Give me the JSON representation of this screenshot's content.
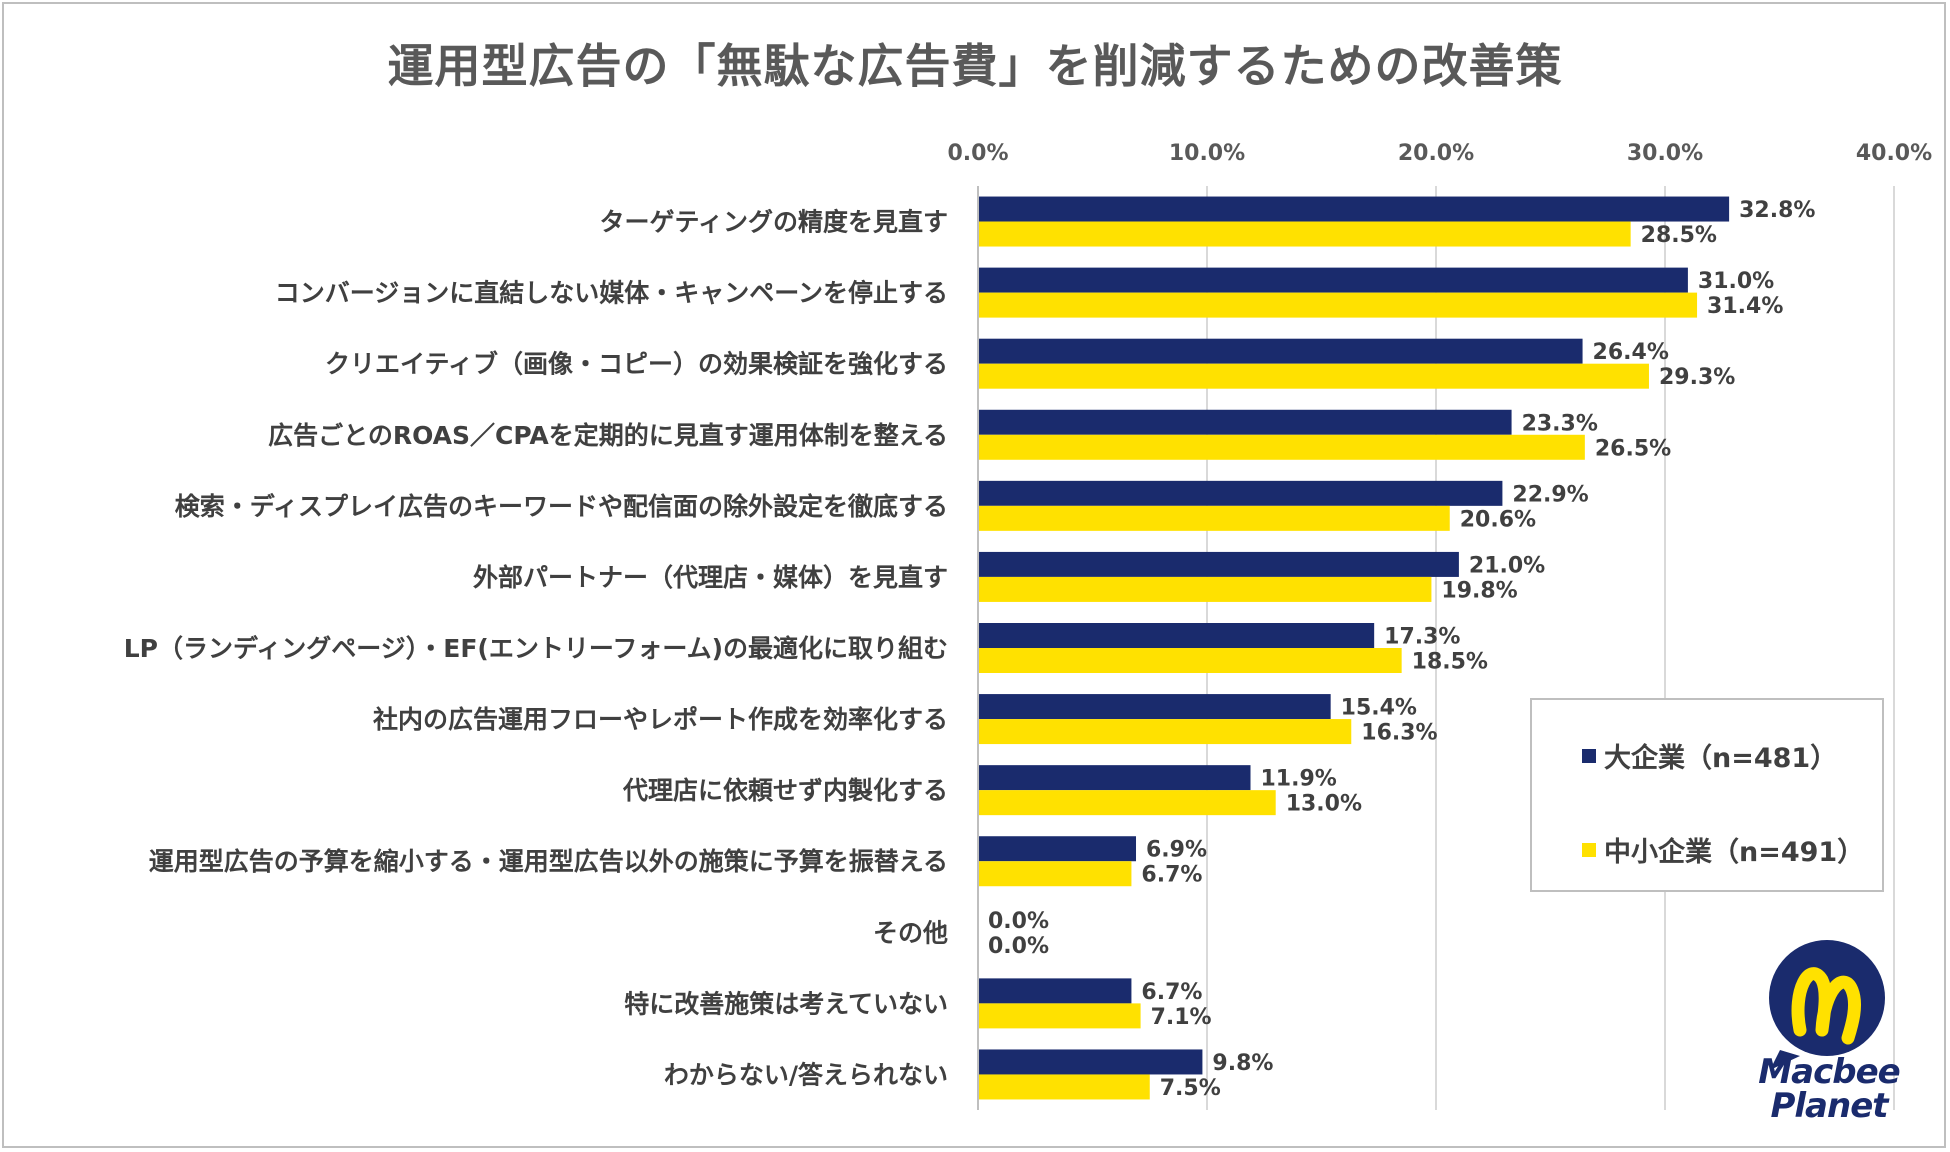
{
  "title": "運用型広告の「無駄な広告費」を削減するための改善策",
  "chart_data": {
    "type": "bar",
    "orientation": "horizontal",
    "title": "運用型広告の「無駄な広告費」を削減するための改善策",
    "xlim": [
      0,
      40
    ],
    "x_ticks": [
      "0.0%",
      "10.0%",
      "20.0%",
      "30.0%",
      "40.0%"
    ],
    "x_tick_values": [
      0,
      10,
      20,
      30,
      40
    ],
    "grid": "vertical",
    "categories": [
      "ターゲティングの精度を見直す",
      "コンバージョンに直結しない媒体・キャンペーンを停止する",
      "クリエイティブ（画像・コピー）の効果検証を強化する",
      "広告ごとのROAS／CPAを定期的に見直す運用体制を整える",
      "検索・ディスプレイ広告のキーワードや配信面の除外設定を徹底する",
      "外部パートナー（代理店・媒体）を見直す",
      "LP（ランディングページ）・EF(エントリーフォーム)の最適化に取り組む",
      "社内の広告運用フローやレポート作成を効率化する",
      "代理店に依頼せず内製化する",
      "運用型広告の予算を縮小する・運用型広告以外の施策に予算を振替える",
      "その他",
      "特に改善施策は考えていない",
      "わからない/答えられない"
    ],
    "series": [
      {
        "name": "大企業（n=481）",
        "color": "#1a2b6d",
        "values": [
          32.8,
          31.0,
          26.4,
          23.3,
          22.9,
          21.0,
          17.3,
          15.4,
          11.9,
          6.9,
          0.0,
          6.7,
          9.8
        ],
        "labels": [
          "32.8%",
          "31.0%",
          "26.4%",
          "23.3%",
          "22.9%",
          "21.0%",
          "17.3%",
          "15.4%",
          "11.9%",
          "6.9%",
          "0.0%",
          "6.7%",
          "9.8%"
        ]
      },
      {
        "name": "中小企業（n=491）",
        "color": "#ffe100",
        "values": [
          28.5,
          31.4,
          29.3,
          26.5,
          20.6,
          19.8,
          18.5,
          16.3,
          13.0,
          6.7,
          0.0,
          7.1,
          7.5
        ],
        "labels": [
          "28.5%",
          "31.4%",
          "29.3%",
          "26.5%",
          "20.6%",
          "19.8%",
          "18.5%",
          "16.3%",
          "13.0%",
          "6.7%",
          "0.0%",
          "7.1%",
          "7.5%"
        ]
      }
    ],
    "legend_position": "right-middle"
  },
  "legend": {
    "item1": "大企業（n=481）",
    "item2": "中小企業（n=491）"
  },
  "logo": {
    "line1": "Macbee",
    "line2": "Planet",
    "icon": "macbee-planet-logo-icon"
  }
}
